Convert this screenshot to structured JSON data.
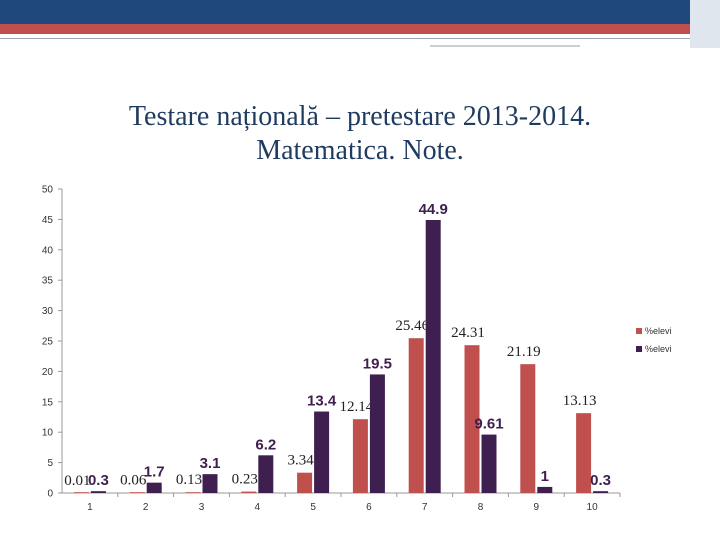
{
  "slide": {
    "title_line1": "Testare națională – pretestare 2013-2014.",
    "title_line2": "Matematica. Note."
  },
  "chart_data": {
    "type": "bar",
    "categories": [
      "1",
      "2",
      "3",
      "4",
      "5",
      "6",
      "7",
      "8",
      "9",
      "10"
    ],
    "ylim": [
      0,
      50
    ],
    "yticks": [
      0,
      5,
      10,
      15,
      20,
      25,
      30,
      35,
      40,
      45,
      50
    ],
    "legend_position": "right",
    "series": [
      {
        "name": "%elevi",
        "color": "#c0504d",
        "values": [
          0.01,
          0.06,
          0.13,
          0.23,
          3.34,
          12.14,
          25.46,
          24.31,
          21.19,
          13.13
        ],
        "labels": [
          "0.01",
          "0.06",
          "0.13",
          "0.23",
          "3.34",
          "12.14",
          "25.46",
          "24.31",
          "21.19",
          "13.13"
        ]
      },
      {
        "name": "%elevi",
        "color": "#3f1f4f",
        "values": [
          0.3,
          1.7,
          3.1,
          6.2,
          13.4,
          19.5,
          44.9,
          9.61,
          1,
          0.3
        ],
        "labels": [
          "0.3",
          "1.7",
          "3.1",
          "6.2",
          "13.4",
          "19.5",
          "44.9",
          "9.61",
          "1",
          "0.3"
        ]
      }
    ]
  }
}
